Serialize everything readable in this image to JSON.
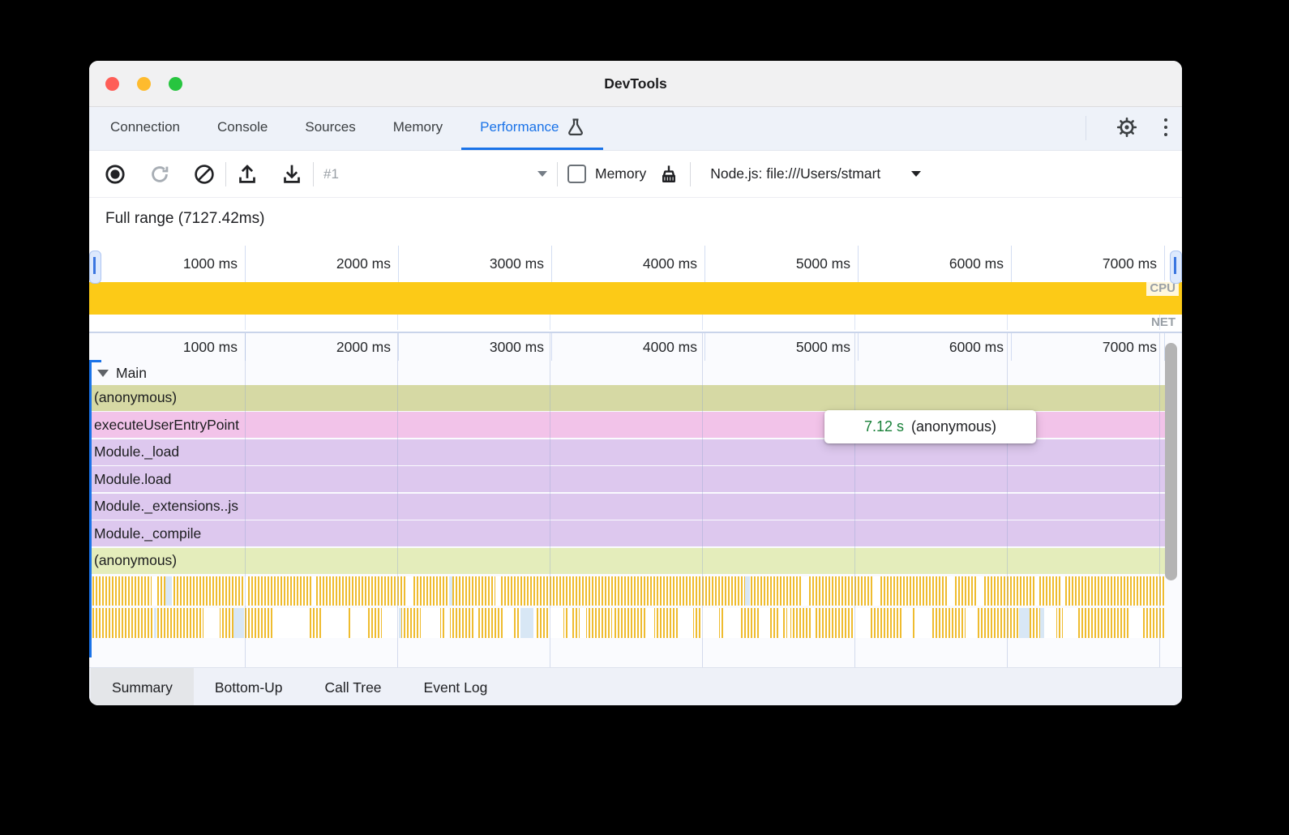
{
  "window": {
    "title": "DevTools"
  },
  "tabs": {
    "active": "Performance",
    "items": [
      {
        "id": "connection",
        "label": "Connection"
      },
      {
        "id": "console",
        "label": "Console"
      },
      {
        "id": "sources",
        "label": "Sources"
      },
      {
        "id": "memory",
        "label": "Memory"
      },
      {
        "id": "performance",
        "label": "Performance",
        "icon": "flask-icon"
      }
    ]
  },
  "tabbar_icons": [
    "settings-gear-icon",
    "more-options-kebab-icon"
  ],
  "toolbar": {
    "icons": [
      "record-icon",
      "reload-icon",
      "clear-block-icon",
      "upload-icon",
      "download-icon",
      "broom-icon"
    ],
    "history_label": "#1",
    "memory_checkbox": {
      "label": "Memory",
      "checked": false
    },
    "target_label": "Node.js: file:///Users/stmart"
  },
  "overview": {
    "full_range_label": "Full range (7127.42ms)",
    "ticks": [
      "1000 ms",
      "2000 ms",
      "3000 ms",
      "4000 ms",
      "5000 ms",
      "6000 ms",
      "7000 ms"
    ],
    "cpu_label": "CPU",
    "net_label": "NET"
  },
  "flame": {
    "ticks": [
      "1000 ms",
      "2000 ms",
      "3000 ms",
      "4000 ms",
      "5000 ms",
      "6000 ms",
      "7000 ms"
    ],
    "group_label": "Main",
    "rows": [
      {
        "label": "(anonymous)",
        "color": "#d6d9a4"
      },
      {
        "label": "executeUserEntryPoint",
        "color": "#f2c3e9"
      },
      {
        "label": "Module._load",
        "color": "#ddc8ee"
      },
      {
        "label": "Module.load",
        "color": "#ddc8ee"
      },
      {
        "label": "Module._extensions..js",
        "color": "#ddc8ee"
      },
      {
        "label": "Module._compile",
        "color": "#ddc8ee"
      },
      {
        "label": "(anonymous)",
        "color": "#e4edbb"
      }
    ],
    "tooltip": {
      "time": "7.12 s",
      "label": "(anonymous)"
    }
  },
  "bottom_tabs": {
    "active": "Summary",
    "items": [
      "Summary",
      "Bottom-Up",
      "Call Tree",
      "Event Log"
    ]
  },
  "colors": {
    "accent_blue": "#1a73e8",
    "cpu_track_yellow": "#fcca17",
    "activity_stripe_yellow": "#efbc2f",
    "tooltip_time_green": "#188038",
    "track_label_gray": "#9aa0a6"
  }
}
